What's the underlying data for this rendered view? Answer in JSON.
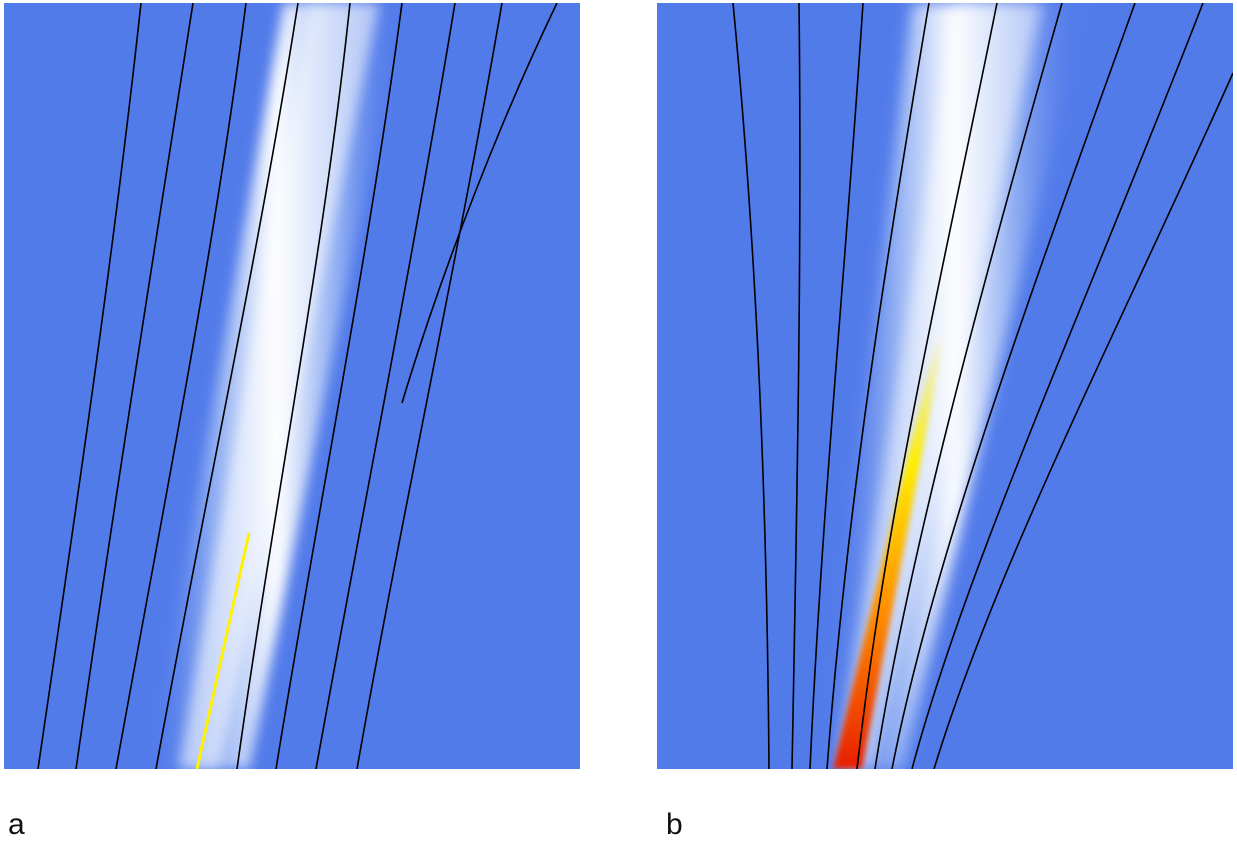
{
  "colors": {
    "background": "#527bea",
    "beam_core_a": "#ffffff",
    "highlight_a": "#fff200",
    "hot_core_b": "#e81e00",
    "mid_core_b": "#ff9a00",
    "outer_core_b": "#ffee00",
    "contour_lines": "#000000"
  },
  "panels": [
    {
      "label": "a",
      "description_icon": "beam-field-plot"
    },
    {
      "label": "b",
      "description_icon": "focused-beam-field-plot"
    }
  ]
}
